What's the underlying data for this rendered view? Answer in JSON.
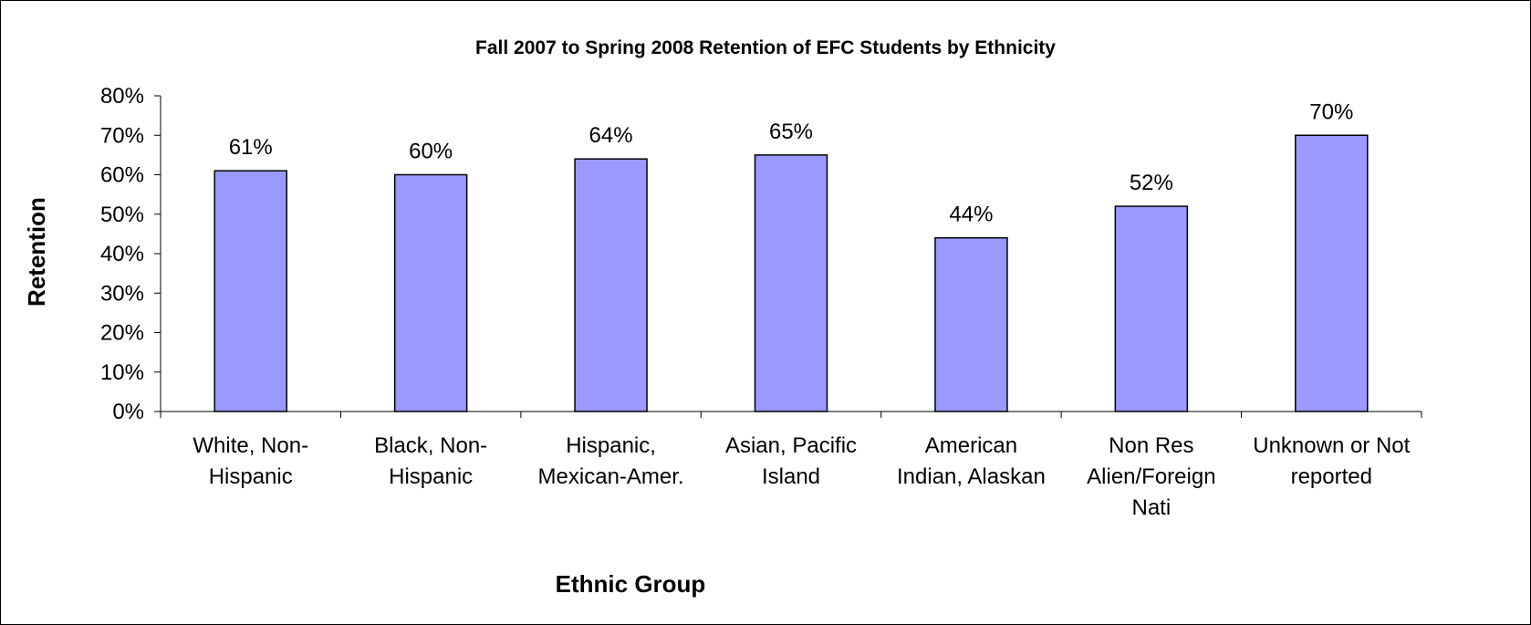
{
  "chart_data": {
    "type": "bar",
    "title": "Fall 2007 to Spring 2008 Retention of EFC Students by Ethnicity",
    "xlabel": "Ethnic Group",
    "ylabel": "Retention",
    "categories": [
      [
        "White, Non-",
        "Hispanic"
      ],
      [
        "Black, Non-",
        "Hispanic"
      ],
      [
        "Hispanic,",
        "Mexican-Amer."
      ],
      [
        "Asian, Pacific",
        "Island"
      ],
      [
        "American",
        "Indian, Alaskan"
      ],
      [
        "Non Res",
        "Alien/Foreign",
        "Nati"
      ],
      [
        "Unknown or Not",
        "reported"
      ]
    ],
    "values": [
      0.61,
      0.6,
      0.64,
      0.65,
      0.44,
      0.52,
      0.7
    ],
    "value_labels": [
      "61%",
      "60%",
      "64%",
      "65%",
      "44%",
      "52%",
      "70%"
    ],
    "ylim": [
      0,
      0.8
    ],
    "yticks": [
      0,
      0.1,
      0.2,
      0.3,
      0.4,
      0.5,
      0.6,
      0.7,
      0.8
    ],
    "ytick_labels": [
      "0%",
      "10%",
      "20%",
      "30%",
      "40%",
      "50%",
      "60%",
      "70%",
      "80%"
    ],
    "grid": false,
    "legend": "none",
    "bar_color": "#9999FF",
    "bar_stroke": "#000000"
  }
}
